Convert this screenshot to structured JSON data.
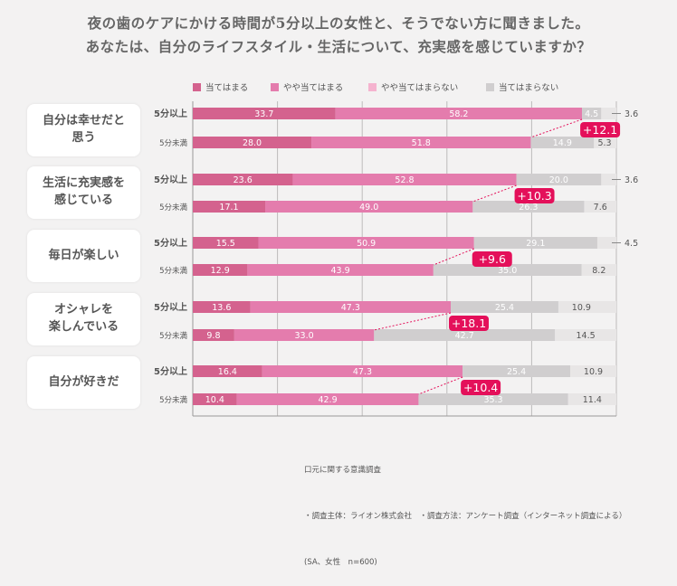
{
  "title": {
    "line1": "夜の歯のケアにかける時間が5分以上の女性と、そうでない方に聞きました。",
    "line2": "あなたは、自分のライフスタイル・生活について、充実感を感じていますか？"
  },
  "legend": [
    {
      "label": "当てはまる",
      "color": "#d4628e"
    },
    {
      "label": "やや当てはまる",
      "color": "#e47cad"
    },
    {
      "label": "やや当てはまらない",
      "color": "#f5b3cf"
    },
    {
      "label": "当てはまらない",
      "color": "#d0cecf"
    }
  ],
  "source": {
    "line1": "口元に関する意識調査",
    "line2": "・調査主体：ライオン株式会社　・調査方法：アンケート調査（インターネット調査による）",
    "line3": "(SA、女性　n=600)"
  },
  "colors": {
    "badge": "#e4105a",
    "track": "#e8e6e6",
    "gray_seg": "#d0cecf"
  },
  "chart_data": {
    "type": "bar",
    "orientation": "horizontal",
    "stacked": true,
    "xlim": [
      0,
      100
    ],
    "series": [
      {
        "name": "当てはまる"
      },
      {
        "name": "やや当てはまる"
      },
      {
        "name": "やや当てはまらない"
      },
      {
        "name": "当てはまらない"
      }
    ],
    "groups": [
      {
        "category": "自分は幸せだと\n思う",
        "diff_label": "+12.1",
        "rows": [
          {
            "label": "5分以上",
            "values": [
              33.7,
              58.2,
              4.5,
              3.6
            ],
            "labels": [
              "33.7",
              "58.2",
              "4.5",
              "3.6"
            ]
          },
          {
            "label": "5分未満",
            "values": [
              28.0,
              51.8,
              14.9,
              5.3
            ],
            "labels": [
              "28.0",
              "51.8",
              "14.9",
              "5.3"
            ]
          }
        ]
      },
      {
        "category": "生活に充実感を\n感じている",
        "diff_label": "+10.3",
        "rows": [
          {
            "label": "5分以上",
            "values": [
              23.6,
              52.8,
              20.0,
              3.6
            ],
            "labels": [
              "23.6",
              "52.8",
              "20.0",
              "3.6"
            ]
          },
          {
            "label": "5分未満",
            "values": [
              17.1,
              49.0,
              26.3,
              7.6
            ],
            "labels": [
              "17.1",
              "49.0",
              "26.3",
              "7.6"
            ]
          }
        ]
      },
      {
        "category": "毎日が楽しい",
        "diff_label": "+9.6",
        "rows": [
          {
            "label": "5分以上",
            "values": [
              15.5,
              50.9,
              29.1,
              4.5
            ],
            "labels": [
              "15.5",
              "50.9",
              "29.1",
              "4.5"
            ]
          },
          {
            "label": "5分未満",
            "values": [
              12.9,
              43.9,
              35.0,
              8.2
            ],
            "labels": [
              "12.9",
              "43.9",
              "35.0",
              "8.2"
            ]
          }
        ]
      },
      {
        "category": "オシャレを\n楽しんでいる",
        "diff_label": "+18.1",
        "rows": [
          {
            "label": "5分以上",
            "values": [
              13.6,
              47.3,
              25.4,
              10.9
            ],
            "labels": [
              "13.6",
              "47.3",
              "25.4",
              "10.9"
            ]
          },
          {
            "label": "5分未満",
            "values": [
              9.8,
              33.0,
              42.7,
              14.5
            ],
            "labels": [
              "9.8",
              "33.0",
              "42.7",
              "14.5"
            ]
          }
        ]
      },
      {
        "category": "自分が好きだ",
        "diff_label": "+10.4",
        "rows": [
          {
            "label": "5分以上",
            "values": [
              16.4,
              47.3,
              25.4,
              10.9
            ],
            "labels": [
              "16.4",
              "47.3",
              "25.4",
              "10.9"
            ]
          },
          {
            "label": "5分未満",
            "values": [
              10.4,
              42.9,
              35.3,
              11.4
            ],
            "labels": [
              "10.4",
              "42.9",
              "35.3",
              "11.4"
            ]
          }
        ]
      }
    ]
  }
}
